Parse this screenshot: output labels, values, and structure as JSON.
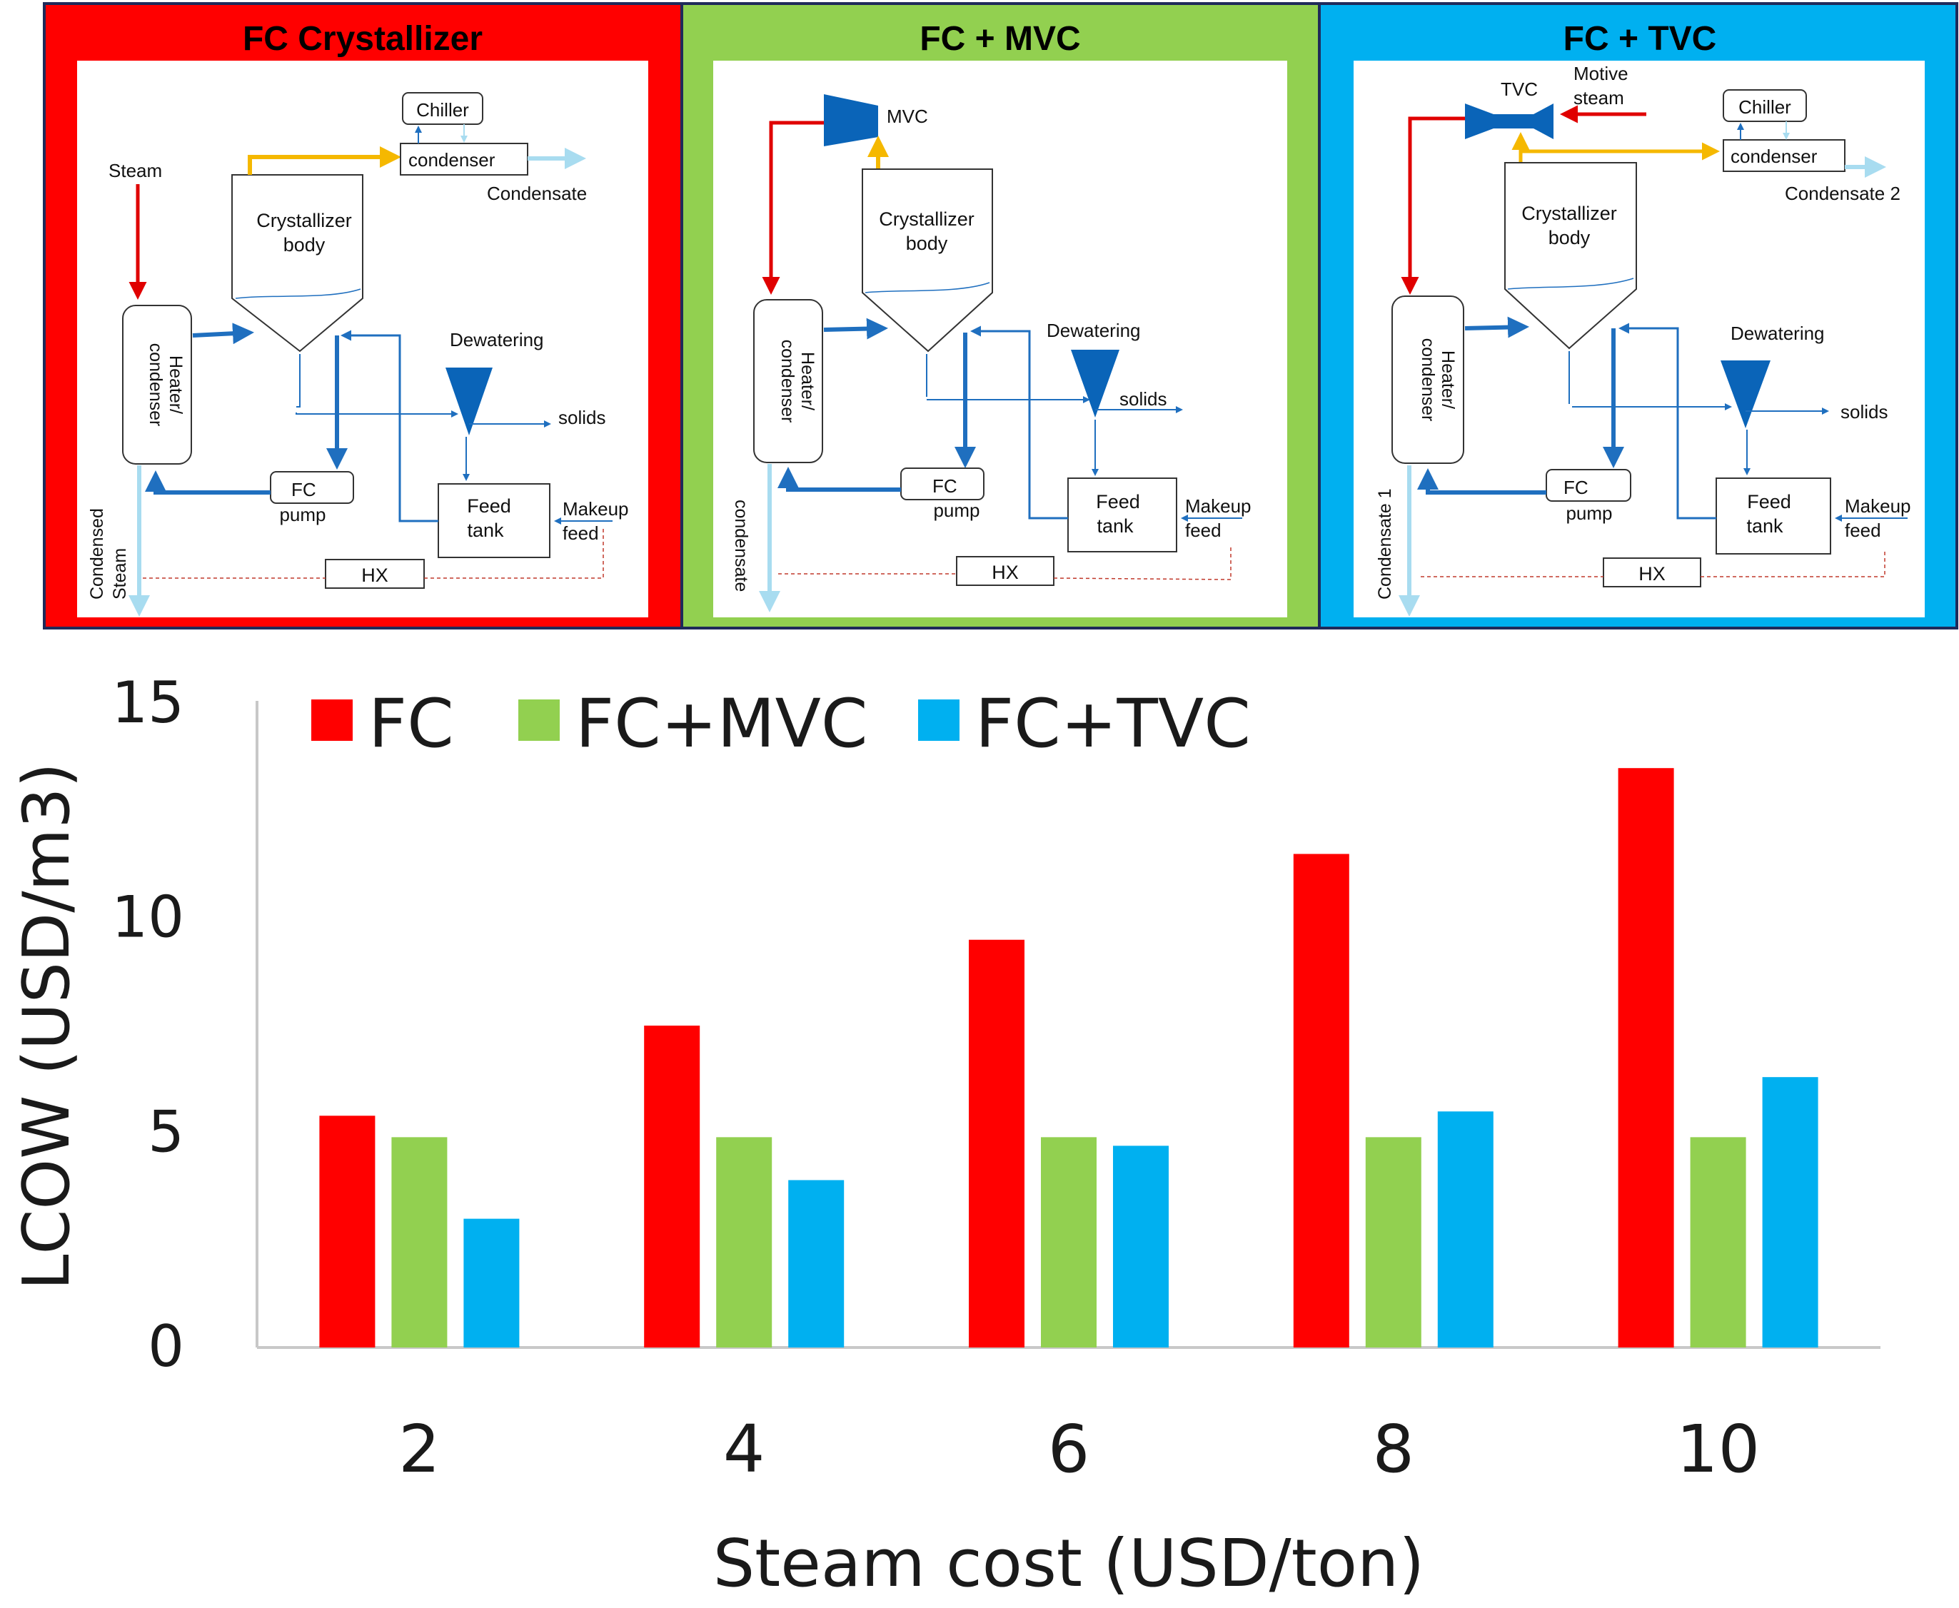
{
  "colors": {
    "fc": "#ff0000",
    "mvc": "#92d050",
    "tvc": "#00b0f0",
    "steam_line": "#e00000",
    "vapor_line": "#f5b800",
    "process_line": "#1f6fbf",
    "condensate_line": "#a8dcf0",
    "hx_dash": "#c0392b",
    "equipment": "#0a64b8",
    "frame": "#1f2a5a"
  },
  "panels": [
    {
      "title": "FC Crystallizer",
      "chiller": "Chiller",
      "condenser": "condenser",
      "condensate": "Condensate",
      "steam": "Steam",
      "crystallizer": [
        "Crystallizer",
        "body"
      ],
      "heater": [
        "Heater/",
        "condenser"
      ],
      "dewatering": "Dewatering",
      "solids": "solids",
      "pump": [
        "FC",
        "pump"
      ],
      "feed_tank": [
        "Feed",
        "tank"
      ],
      "makeup": [
        "Makeup",
        "feed"
      ],
      "hx": "HX",
      "bottom_outlet": [
        "Condensed",
        "Steam"
      ]
    },
    {
      "title": "FC + MVC",
      "compressor": "MVC",
      "crystallizer": [
        "Crystallizer",
        "body"
      ],
      "heater": [
        "Heater/",
        "condenser"
      ],
      "dewatering": "Dewatering",
      "solids": "solids",
      "pump": [
        "FC",
        "pump"
      ],
      "feed_tank": [
        "Feed",
        "tank"
      ],
      "makeup": [
        "Makeup",
        "feed"
      ],
      "hx": "HX",
      "bottom_outlet": [
        "condensate"
      ]
    },
    {
      "title": "FC + TVC",
      "compressor": "TVC",
      "motive": [
        "Motive",
        "steam"
      ],
      "chiller": "Chiller",
      "condenser": "condenser",
      "condensate": "Condensate 2",
      "crystallizer": [
        "Crystallizer",
        "body"
      ],
      "heater": [
        "Heater/",
        "condenser"
      ],
      "dewatering": "Dewatering",
      "solids": "solids",
      "pump": [
        "FC",
        "pump"
      ],
      "feed_tank": [
        "Feed",
        "tank"
      ],
      "makeup": [
        "Makeup",
        "feed"
      ],
      "hx": "HX",
      "bottom_outlet": [
        "Condensate 1"
      ]
    }
  ],
  "chart_data": {
    "type": "bar",
    "categories": [
      "2",
      "4",
      "6",
      "8",
      "10"
    ],
    "series": [
      {
        "name": "FC",
        "color": "#ff0000",
        "values": [
          5.4,
          7.5,
          9.5,
          11.5,
          13.5
        ]
      },
      {
        "name": "FC+MVC",
        "color": "#92d050",
        "values": [
          4.9,
          4.9,
          4.9,
          4.9,
          4.9
        ]
      },
      {
        "name": "FC+TVC",
        "color": "#00b0f0",
        "values": [
          3.0,
          3.9,
          4.7,
          5.5,
          6.3
        ]
      }
    ],
    "xlabel": "Steam cost (USD/ton)",
    "ylabel": "LCOW (USD/m3)",
    "ylim": [
      0,
      15
    ],
    "yticks": [
      "0",
      "5",
      "10",
      "15"
    ],
    "grid": false,
    "legend": "top-left"
  }
}
